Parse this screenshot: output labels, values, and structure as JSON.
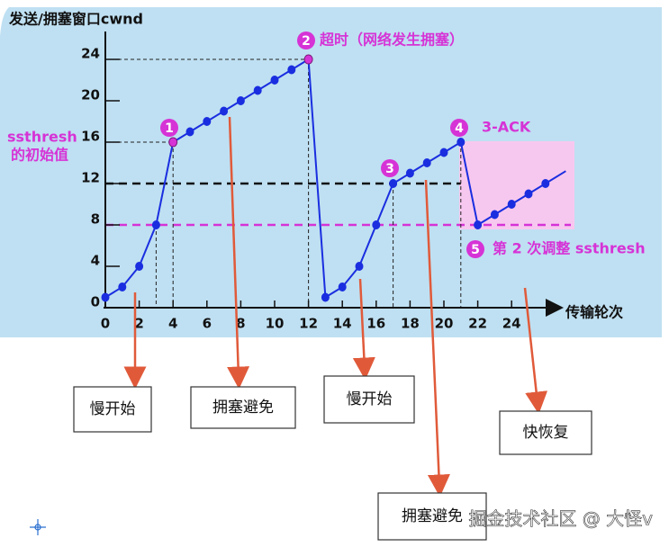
{
  "chart_data": {
    "type": "line",
    "y_label": "发送/拥塞窗口cwnd",
    "x_label": "传输轮次",
    "x": [
      0,
      1,
      2,
      3,
      4,
      5,
      6,
      7,
      8,
      9,
      10,
      11,
      12,
      13,
      14,
      15,
      16,
      17,
      18,
      19,
      20,
      21,
      22,
      23,
      24,
      25,
      26
    ],
    "series": [
      {
        "name": "cwnd",
        "color": "#1a2ee0",
        "values": [
          1,
          2,
          4,
          8,
          16,
          17,
          18,
          19,
          20,
          21,
          22,
          23,
          24,
          1,
          2,
          4,
          8,
          12,
          13,
          14,
          15,
          16,
          8,
          9,
          10,
          11,
          12
        ]
      }
    ],
    "highlight_indices": [
      4,
      12
    ],
    "highlight_color": "#d633d6",
    "xlim": [
      0,
      27
    ],
    "ylim": [
      0,
      26
    ],
    "xticks": [
      0,
      2,
      4,
      6,
      8,
      10,
      12,
      14,
      16,
      18,
      20,
      22,
      24
    ],
    "yticks": [
      0,
      4,
      8,
      12,
      16,
      20,
      24
    ],
    "hlines": [
      {
        "value": 24,
        "to": 12,
        "color": "#222",
        "style": "thin"
      },
      {
        "value": 16,
        "to": 4,
        "color": "#222",
        "style": "thin"
      },
      {
        "value": 12,
        "to": 21,
        "color": "#111",
        "style": "thick"
      },
      {
        "value": 8,
        "to": 27.5,
        "color": "#d633d6",
        "style": "thick"
      }
    ],
    "vlines": [
      3,
      4,
      12,
      17,
      21
    ],
    "ssthresh_label": [
      "ssthresh",
      "的初始值"
    ],
    "annotations": [
      {
        "badge": "1"
      },
      {
        "badge": "2",
        "text": "超时（网络发生拥塞）"
      },
      {
        "badge": "3"
      },
      {
        "badge": "4",
        "text": "3-ACK"
      },
      {
        "badge": "5",
        "text": "第 2 次调整 ssthresh"
      }
    ],
    "phases": [
      "慢开始",
      "拥塞避免",
      "慢开始",
      "快恢复",
      "拥塞避免"
    ],
    "watermark": "掘金技术社区 @ 大怪v"
  }
}
